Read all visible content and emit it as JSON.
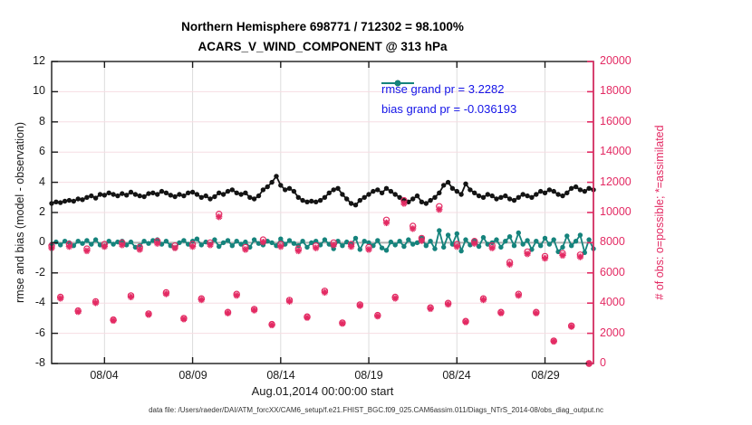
{
  "figure": {
    "title_line1": "Northern Hemisphere 698771 / 712302 = 98.100%",
    "title_line2": "ACARS_V_WIND_COMPONENT @ 313 hPa",
    "footer": "data file: /Users/raeder/DAI/ATM_forcXX/CAM6_setup/f.e21.FHIST_BGC.f09_025.CAM6assim.011/Diags_NTrS_2014-08/obs_diag_output.nc"
  },
  "chart_data": {
    "type": "line",
    "title": "Northern Hemisphere 698771 / 712302 = 98.100%",
    "subtitle": "ACARS_V_WIND_COMPONENT @ 313 hPa",
    "xlabel": "Aug.01,2014 00:00:00 start",
    "ylabel_left": "rmse and bias (model - observation)",
    "ylabel_right": "# of obs: o=possible; *=assimilated",
    "grid": true,
    "legend_position": "top-right-inside",
    "x_domain_days": [
      0,
      30.75
    ],
    "ylim_left": [
      -8,
      12
    ],
    "ylim_right": [
      0,
      20000
    ],
    "x_ticks": {
      "days": [
        3,
        8,
        13,
        18,
        23,
        28
      ],
      "labels": [
        "08/04",
        "08/09",
        "08/14",
        "08/19",
        "08/24",
        "08/29"
      ]
    },
    "y_left": {
      "values": [
        12,
        10,
        8,
        6,
        4,
        2,
        0,
        -2,
        -4,
        -6,
        -8
      ],
      "labels": [
        "12",
        "10",
        "8",
        "6",
        "4",
        "2",
        "0",
        "-2",
        "-4",
        "-6",
        "-8"
      ]
    },
    "y_right": {
      "values": [
        20000,
        18000,
        16000,
        14000,
        12000,
        10000,
        8000,
        6000,
        4000,
        2000,
        0
      ],
      "labels": [
        "20000",
        "18000",
        "16000",
        "14000",
        "12000",
        "10000",
        "8000",
        "6000",
        "4000",
        "2000",
        "0"
      ]
    },
    "legend": [
      {
        "label": "rmse grand pr = 3.2282",
        "color": "#141414"
      },
      {
        "label": "bias grand pr = -0.036193",
        "color": "#15837c"
      }
    ],
    "colors": {
      "rmse": "#141414",
      "bias": "#15837c",
      "obs": "#e32a63",
      "grid_horizontal": "#f6dde3",
      "grid_vertical": "#dcdcdc",
      "zero_line": "#b0b0b0",
      "legend_text": "#1414e8",
      "axis_box": "#1a1a1a",
      "right_spine": "#e32a63"
    },
    "series": [
      {
        "name": "rmse",
        "axis": "left",
        "marker": "dot",
        "interval_days": 0.25,
        "values": [
          2.6,
          2.7,
          2.65,
          2.75,
          2.8,
          2.75,
          2.9,
          2.85,
          3.0,
          3.1,
          2.95,
          3.2,
          3.15,
          3.3,
          3.2,
          3.1,
          3.25,
          3.15,
          3.35,
          3.2,
          3.1,
          3.05,
          3.25,
          3.3,
          3.2,
          3.4,
          3.3,
          3.15,
          3.05,
          3.2,
          3.1,
          3.3,
          3.35,
          3.2,
          3.0,
          3.1,
          2.9,
          3.05,
          3.3,
          3.2,
          3.4,
          3.5,
          3.3,
          3.2,
          3.3,
          3.0,
          2.9,
          3.1,
          3.5,
          3.7,
          4.0,
          4.4,
          3.8,
          3.5,
          3.6,
          3.4,
          3.0,
          2.8,
          2.7,
          2.75,
          2.7,
          2.8,
          3.0,
          3.3,
          3.5,
          3.6,
          3.2,
          2.9,
          2.6,
          2.5,
          2.8,
          3.0,
          3.2,
          3.4,
          3.5,
          3.3,
          3.6,
          3.4,
          3.2,
          3.0,
          2.8,
          2.7,
          2.9,
          3.1,
          2.7,
          2.6,
          2.8,
          3.0,
          3.3,
          3.8,
          4.0,
          3.6,
          3.4,
          3.2,
          3.9,
          3.5,
          3.3,
          3.1,
          3.0,
          3.2,
          3.1,
          2.9,
          3.0,
          3.1,
          2.9,
          2.8,
          3.0,
          3.2,
          3.1,
          3.0,
          3.2,
          3.4,
          3.3,
          3.5,
          3.4,
          3.2,
          3.1,
          3.3,
          3.6,
          3.7,
          3.5,
          3.4,
          3.6,
          3.5
        ]
      },
      {
        "name": "bias",
        "axis": "left",
        "marker": "dot",
        "interval_days": 0.25,
        "values": [
          -0.1,
          0.05,
          -0.15,
          0.1,
          0.0,
          -0.2,
          0.1,
          -0.05,
          0.15,
          -0.1,
          0.2,
          -0.15,
          -0.25,
          0.1,
          -0.1,
          0.05,
          0.1,
          -0.15,
          0.05,
          -0.3,
          -0.2,
          0.1,
          -0.05,
          0.15,
          0.2,
          -0.1,
          0.1,
          -0.2,
          -0.35,
          0.0,
          0.15,
          -0.1,
          0.1,
          0.25,
          -0.15,
          0.05,
          -0.1,
          0.2,
          -0.25,
          0.0,
          0.15,
          -0.2,
          0.1,
          -0.1,
          0.05,
          -0.3,
          0.2,
          -0.05,
          -0.15,
          0.1,
          0.0,
          -0.2,
          0.25,
          -0.1,
          0.15,
          -0.05,
          -0.2,
          0.1,
          -0.3,
          0.0,
          0.1,
          -0.15,
          0.2,
          -0.1,
          -0.4,
          0.1,
          -0.2,
          0.05,
          -0.1,
          0.3,
          -0.45,
          0.1,
          0.0,
          -0.2,
          0.15,
          -0.35,
          -0.5,
          0.05,
          -0.15,
          0.1,
          -0.25,
          0.2,
          -0.1,
          0.0,
          0.3,
          -0.2,
          0.1,
          -0.4,
          0.8,
          -0.3,
          0.5,
          -0.1,
          0.6,
          -0.55,
          0.2,
          -0.15,
          0.1,
          -0.25,
          0.35,
          -0.1,
          0.0,
          0.2,
          -0.3,
          0.1,
          0.4,
          -0.2,
          0.65,
          -0.1,
          0.15,
          -0.45,
          0.1,
          -0.2,
          0.3,
          -0.1,
          0.2,
          -0.6,
          -0.3,
          0.45,
          -0.2,
          0.1,
          0.5,
          -0.65,
          0.2,
          -0.4
        ]
      },
      {
        "name": "possible",
        "axis": "right",
        "marker": "circle",
        "interval_days": 0.5,
        "values": [
          7800,
          4400,
          7900,
          3500,
          7600,
          4100,
          7900,
          2900,
          8000,
          4500,
          7700,
          3300,
          8100,
          4700,
          7800,
          3000,
          7900,
          4300,
          8000,
          9900,
          3400,
          4600,
          7700,
          3600,
          8200,
          2600,
          7900,
          4200,
          7600,
          3100,
          7800,
          4800,
          8000,
          2700,
          7900,
          3900,
          7700,
          3200,
          9500,
          4400,
          10800,
          9100,
          8300,
          3700,
          10400,
          4000,
          7900,
          2800,
          8100,
          4300,
          7800,
          3400,
          6700,
          4600,
          7400,
          3400,
          7100,
          1500,
          7300,
          2500,
          7200,
          0
        ]
      },
      {
        "name": "assimilated",
        "axis": "right",
        "marker": "asterisk",
        "interval_days": 0.5,
        "values": [
          7650,
          4320,
          7750,
          3430,
          7460,
          4020,
          7750,
          2850,
          7850,
          4410,
          7550,
          3240,
          7950,
          4610,
          7650,
          2940,
          7750,
          4220,
          7850,
          9710,
          3340,
          4510,
          7550,
          3530,
          8040,
          2550,
          7750,
          4120,
          7460,
          3040,
          7650,
          4710,
          7850,
          2650,
          7750,
          3830,
          7550,
          3140,
          9320,
          4320,
          10600,
          8930,
          8140,
          3630,
          10200,
          3920,
          7750,
          2750,
          7950,
          4220,
          7650,
          3340,
          6570,
          4510,
          7260,
          3340,
          6970,
          1470,
          7160,
          2450,
          7060,
          0
        ]
      }
    ]
  }
}
